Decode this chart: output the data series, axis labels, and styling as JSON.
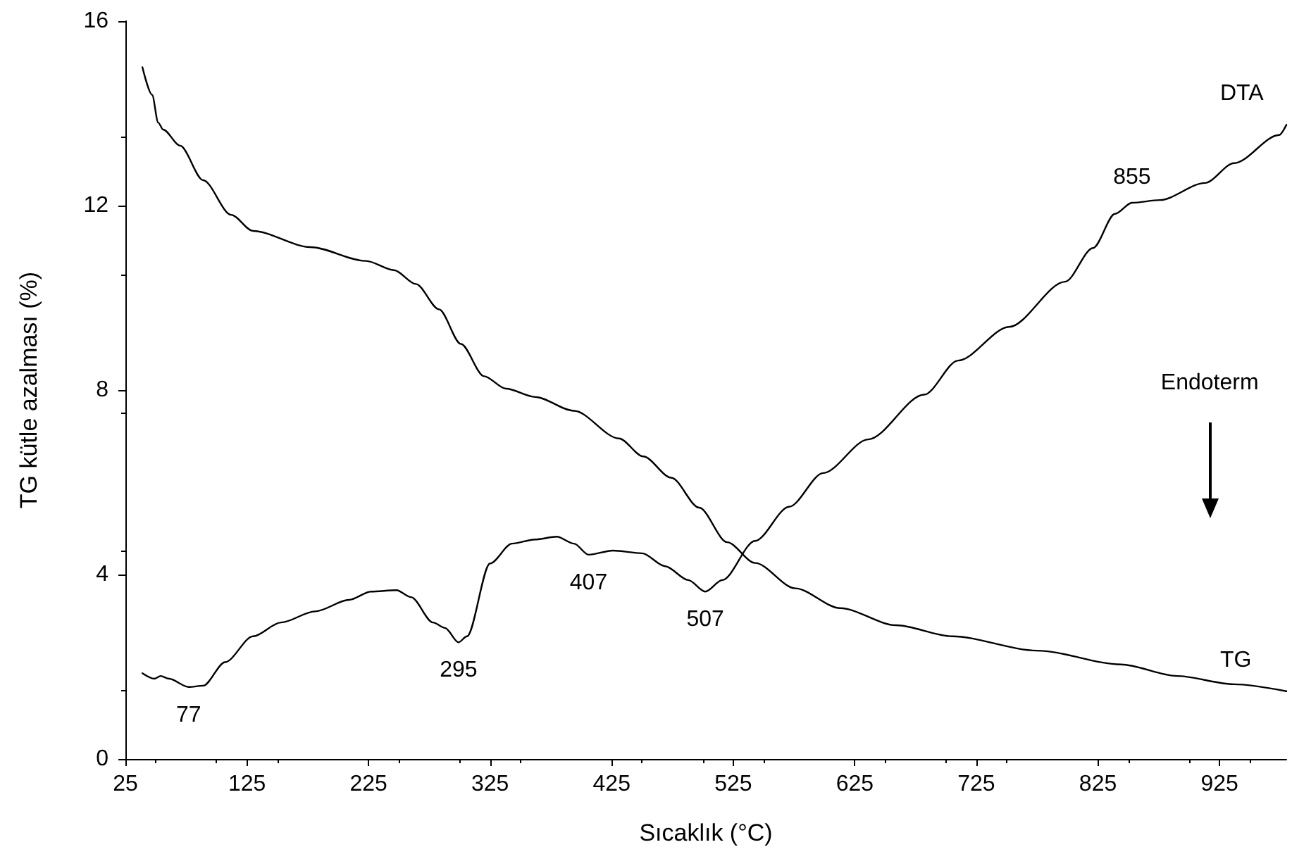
{
  "chart_data": {
    "type": "line",
    "xlabel": "Sıcaklık (°C)",
    "ylabel": "TG kütle azalması (%)",
    "xlim": [
      25,
      980
    ],
    "xticks": [
      25,
      125,
      225,
      325,
      425,
      525,
      625,
      725,
      825,
      925
    ],
    "ylim": [
      0,
      16
    ],
    "yticks": [
      0,
      4,
      8,
      12,
      16
    ],
    "grid": false,
    "legend": false,
    "marker": "none",
    "line_style": "solid",
    "series": [
      {
        "name": "TG",
        "color": "#000000",
        "x": [
          39,
          47,
          52,
          56,
          70,
          89,
          112,
          130,
          177,
          223,
          246,
          264,
          283,
          301,
          320,
          338,
          362,
          394,
          431,
          451,
          474,
          497,
          520,
          543,
          576,
          613,
          659,
          705,
          775,
          844,
          890,
          937,
          980
        ],
        "values": [
          15.0,
          14.4,
          13.8,
          13.65,
          13.3,
          12.55,
          11.8,
          11.45,
          11.1,
          10.8,
          10.6,
          10.3,
          9.75,
          9.0,
          8.3,
          8.03,
          7.85,
          7.55,
          6.95,
          6.56,
          6.1,
          5.45,
          4.7,
          4.25,
          3.7,
          3.27,
          2.9,
          2.66,
          2.35,
          2.05,
          1.8,
          1.62,
          1.47
        ]
      },
      {
        "name": "DTA",
        "color": "#000000",
        "x": [
          39,
          49,
          54,
          61,
          77,
          89,
          107,
          130,
          153,
          181,
          209,
          227,
          248,
          260,
          278,
          288,
          299,
          306,
          325,
          343,
          362,
          380,
          394,
          406,
          426,
          450,
          469,
          488,
          502,
          516,
          543,
          571,
          599,
          636,
          682,
          710,
          752,
          798,
          821,
          839,
          853,
          876,
          913,
          937,
          974,
          980
        ],
        "values": [
          1.86,
          1.74,
          1.8,
          1.74,
          1.56,
          1.59,
          2.1,
          2.66,
          2.96,
          3.2,
          3.45,
          3.63,
          3.66,
          3.51,
          2.96,
          2.84,
          2.53,
          2.66,
          4.24,
          4.67,
          4.76,
          4.82,
          4.67,
          4.43,
          4.52,
          4.46,
          4.18,
          3.88,
          3.63,
          3.88,
          4.73,
          5.47,
          6.2,
          6.93,
          7.9,
          8.64,
          9.37,
          10.35,
          11.08,
          11.82,
          12.06,
          12.12,
          12.49,
          12.92,
          13.53,
          13.75
        ]
      }
    ],
    "annotations": [
      {
        "text": "77",
        "x": 77,
        "y": 1.56
      },
      {
        "text": "295",
        "x": 299,
        "y": 2.53
      },
      {
        "text": "407",
        "x": 406,
        "y": 4.43
      },
      {
        "text": "507",
        "x": 502,
        "y": 3.63
      },
      {
        "text": "855",
        "x": 853,
        "y": 12.06
      },
      "Endoterm"
    ]
  }
}
